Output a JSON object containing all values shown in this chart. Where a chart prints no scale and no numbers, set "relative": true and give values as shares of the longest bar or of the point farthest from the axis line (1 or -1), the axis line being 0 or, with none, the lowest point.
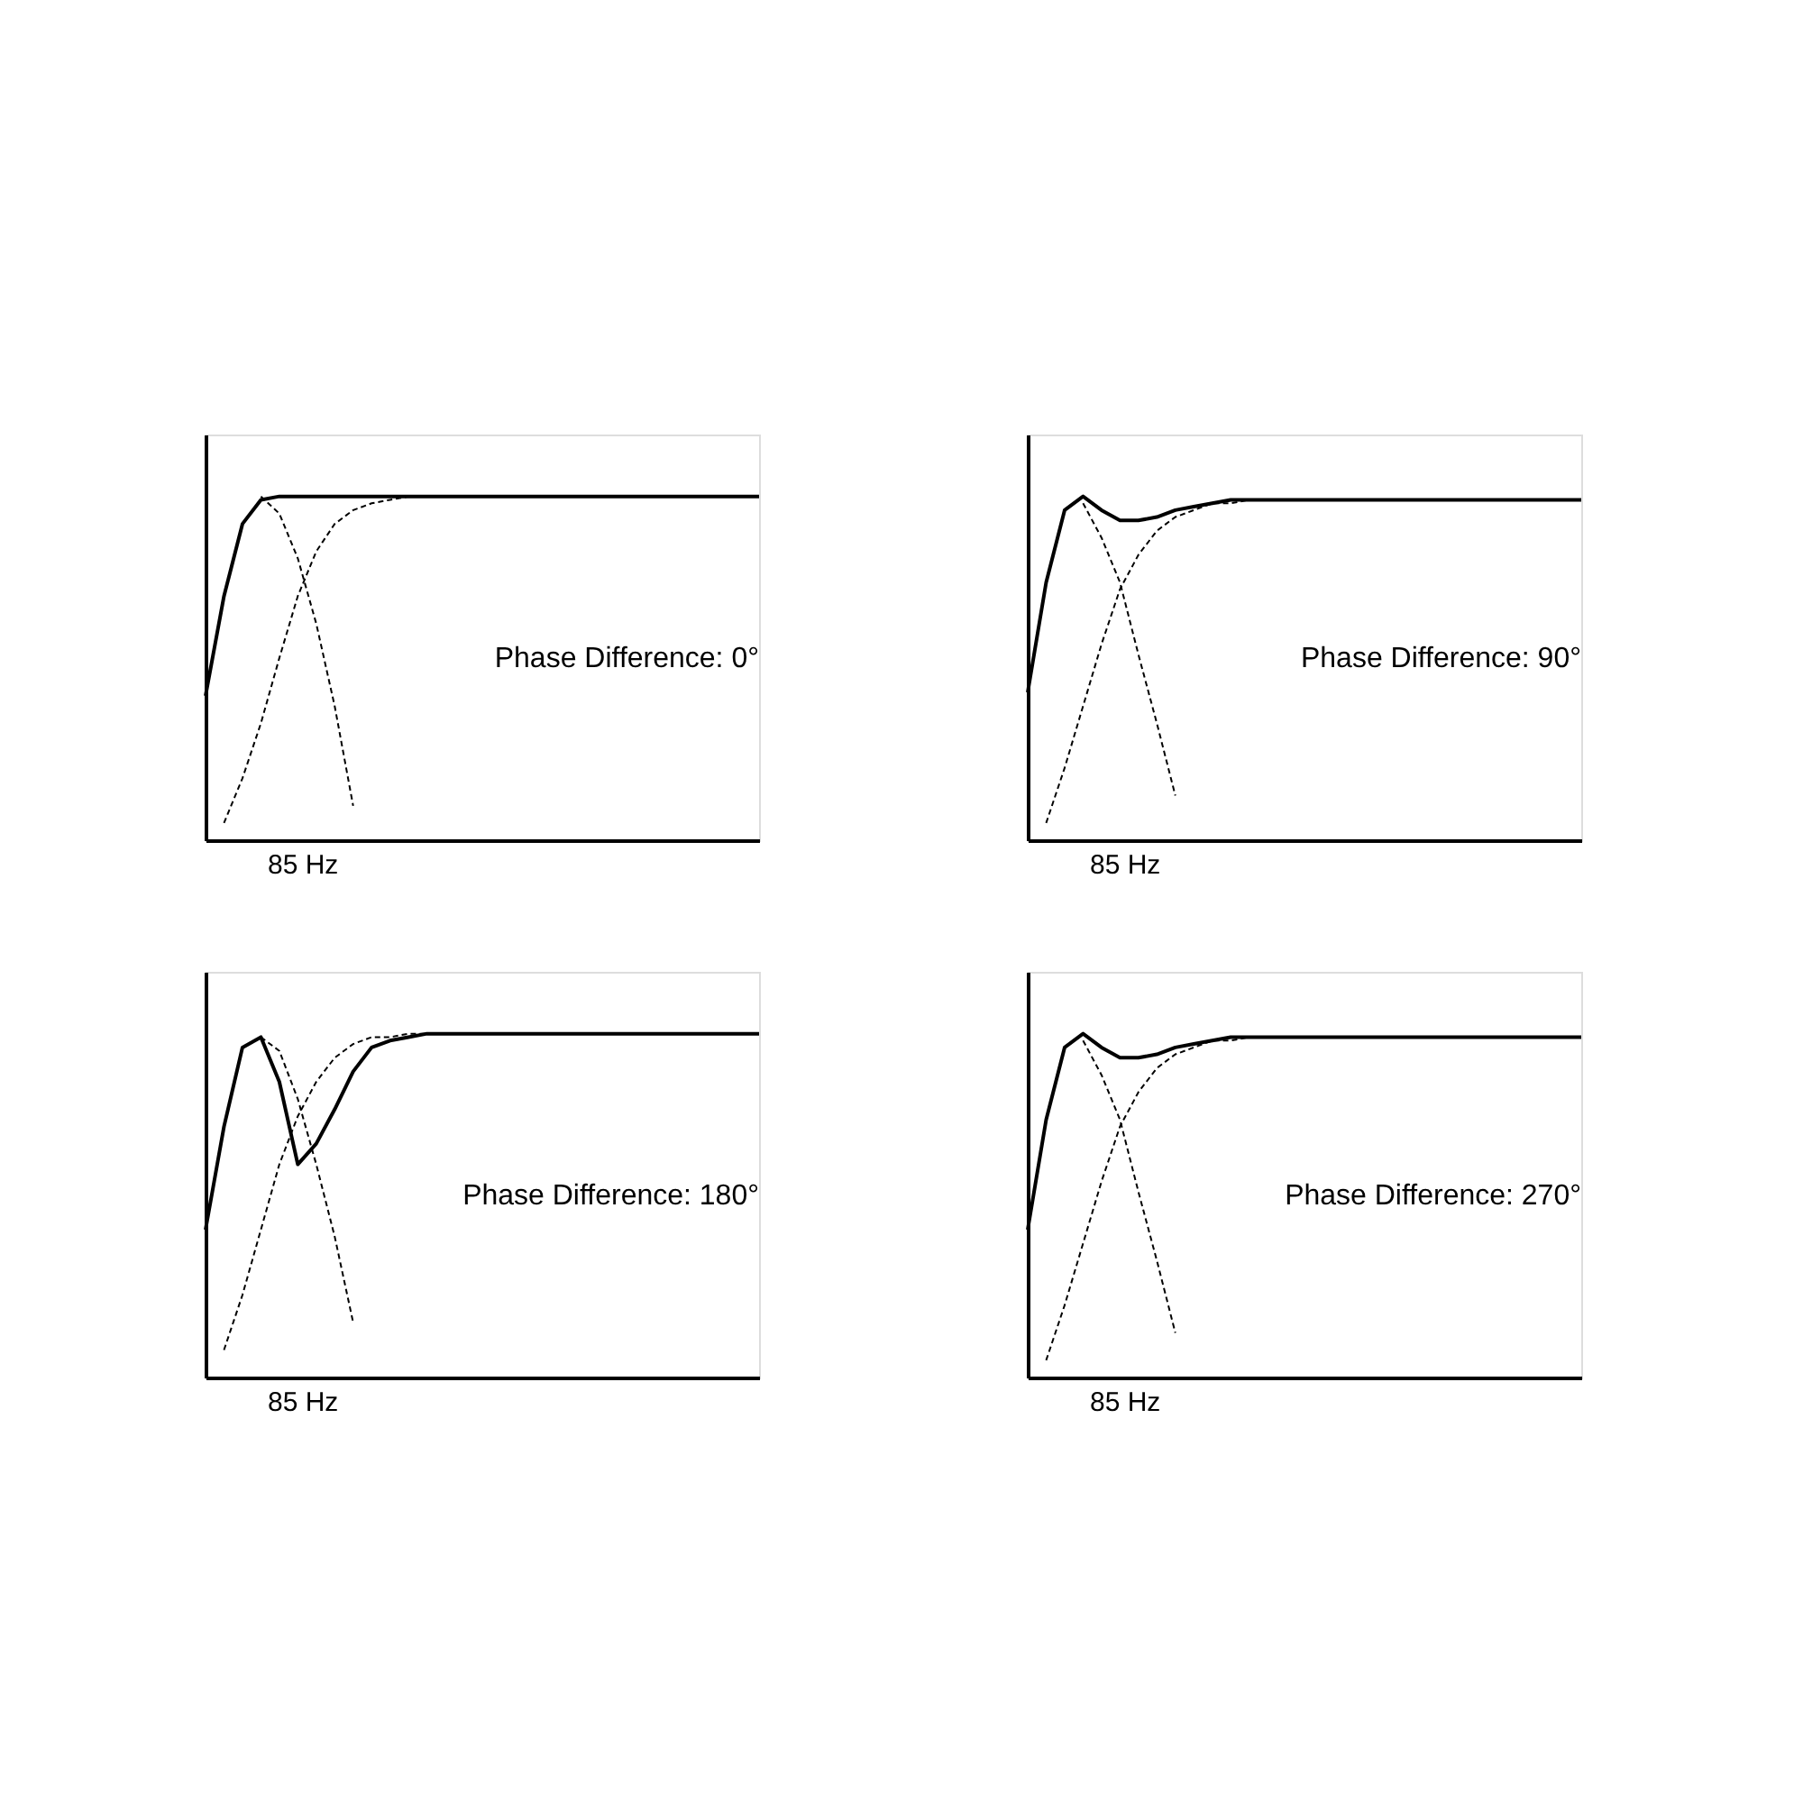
{
  "chart_data": [
    {
      "type": "line",
      "relative": true,
      "xlabel": "85 Hz",
      "annotations": [
        "Phase Difference: 0°"
      ],
      "categories": [
        null,
        null,
        null,
        null,
        null,
        null,
        null,
        null,
        null,
        null,
        null,
        null,
        null,
        null,
        null,
        null,
        null,
        null,
        null,
        null,
        null,
        null,
        null,
        null,
        null,
        null,
        null,
        null,
        null,
        null,
        null
      ],
      "series": [
        {
          "color": "#000000",
          "line_style": "solid",
          "values": [
            0.42,
            0.71,
            0.92,
            0.99,
            1,
            1,
            1,
            1,
            1,
            1,
            1,
            1,
            1,
            1,
            1,
            1,
            1,
            1,
            1,
            1,
            1,
            1,
            1,
            1,
            1,
            1,
            1,
            1,
            1,
            1,
            1
          ]
        },
        {
          "color": "#000000",
          "line_style": "dashed",
          "values": [
            null,
            null,
            null,
            1,
            0.95,
            0.82,
            0.63,
            0.39,
            0.1,
            null,
            null,
            null,
            null,
            null,
            null,
            null,
            null,
            null,
            null,
            null,
            null,
            null,
            null,
            null,
            null,
            null,
            null,
            null,
            null,
            null,
            null
          ]
        },
        {
          "color": "#000000",
          "line_style": "dashed",
          "values": [
            null,
            0.05,
            0.18,
            0.34,
            0.53,
            0.71,
            0.84,
            0.92,
            0.96,
            0.98,
            0.99,
            1,
            1,
            1,
            1,
            1,
            1,
            1,
            1,
            1,
            1,
            1,
            1,
            1,
            1,
            1,
            1,
            1,
            1,
            1,
            1
          ]
        }
      ]
    },
    {
      "type": "line",
      "relative": true,
      "xlabel": "85 Hz",
      "annotations": [
        "Phase Difference: 90°"
      ],
      "categories": [
        null,
        null,
        null,
        null,
        null,
        null,
        null,
        null,
        null,
        null,
        null,
        null,
        null,
        null,
        null,
        null,
        null,
        null,
        null,
        null,
        null,
        null,
        null,
        null,
        null,
        null,
        null,
        null,
        null,
        null,
        null
      ],
      "series": [
        {
          "color": "#000000",
          "line_style": "solid",
          "values": [
            0.43,
            0.75,
            0.96,
            1,
            0.96,
            0.93,
            0.93,
            0.94,
            0.96,
            0.97,
            0.98,
            0.99,
            0.99,
            0.99,
            0.99,
            0.99,
            0.99,
            0.99,
            0.99,
            0.99,
            0.99,
            0.99,
            0.99,
            0.99,
            0.99,
            0.99,
            0.99,
            0.99,
            0.99,
            0.99,
            0.99
          ]
        },
        {
          "color": "#000000",
          "line_style": "dashed",
          "values": [
            null,
            null,
            null,
            0.98,
            0.88,
            0.75,
            0.54,
            0.34,
            0.13,
            null,
            null,
            null,
            null,
            null,
            null,
            null,
            null,
            null,
            null,
            null,
            null,
            null,
            null,
            null,
            null,
            null,
            null,
            null,
            null,
            null,
            null
          ]
        },
        {
          "color": "#000000",
          "line_style": "dashed",
          "values": [
            null,
            0.05,
            0.21,
            0.39,
            0.57,
            0.73,
            0.83,
            0.9,
            0.94,
            0.96,
            0.98,
            0.98,
            0.99,
            0.99,
            0.99,
            0.99,
            0.99,
            0.99,
            0.99,
            0.99,
            0.99,
            0.99,
            0.99,
            0.99,
            0.99,
            0.99,
            0.99,
            0.99,
            0.99,
            0.99,
            0.99
          ]
        }
      ]
    },
    {
      "type": "line",
      "relative": true,
      "xlabel": "85 Hz",
      "annotations": [
        "Phase Difference: 180°"
      ],
      "categories": [
        null,
        null,
        null,
        null,
        null,
        null,
        null,
        null,
        null,
        null,
        null,
        null,
        null,
        null,
        null,
        null,
        null,
        null,
        null,
        null,
        null,
        null,
        null,
        null,
        null,
        null,
        null,
        null,
        null,
        null,
        null
      ],
      "series": [
        {
          "color": "#000000",
          "line_style": "solid",
          "values": [
            0.43,
            0.73,
            0.96,
            0.99,
            0.86,
            0.62,
            0.68,
            0.78,
            0.89,
            0.96,
            0.98,
            0.99,
            1,
            1,
            1,
            1,
            1,
            1,
            1,
            1,
            1,
            1,
            1,
            1,
            1,
            1,
            1,
            1,
            1,
            1,
            1
          ]
        },
        {
          "color": "#000000",
          "line_style": "dashed",
          "values": [
            null,
            null,
            null,
            0.99,
            0.95,
            0.81,
            0.62,
            0.41,
            0.16,
            null,
            null,
            null,
            null,
            null,
            null,
            null,
            null,
            null,
            null,
            null,
            null,
            null,
            null,
            null,
            null,
            null,
            null,
            null,
            null,
            null,
            null
          ]
        },
        {
          "color": "#000000",
          "line_style": "dashed",
          "values": [
            null,
            0.08,
            0.24,
            0.43,
            0.62,
            0.76,
            0.86,
            0.93,
            0.97,
            0.99,
            0.99,
            1,
            1,
            1,
            1,
            1,
            1,
            1,
            1,
            1,
            1,
            1,
            1,
            1,
            1,
            1,
            1,
            1,
            1,
            1,
            1
          ]
        }
      ]
    },
    {
      "type": "line",
      "relative": true,
      "xlabel": "85 Hz",
      "annotations": [
        "Phase Difference: 270°"
      ],
      "categories": [
        null,
        null,
        null,
        null,
        null,
        null,
        null,
        null,
        null,
        null,
        null,
        null,
        null,
        null,
        null,
        null,
        null,
        null,
        null,
        null,
        null,
        null,
        null,
        null,
        null,
        null,
        null,
        null,
        null,
        null,
        null
      ],
      "series": [
        {
          "color": "#000000",
          "line_style": "solid",
          "values": [
            0.43,
            0.75,
            0.96,
            1,
            0.96,
            0.93,
            0.93,
            0.94,
            0.96,
            0.97,
            0.98,
            0.99,
            0.99,
            0.99,
            0.99,
            0.99,
            0.99,
            0.99,
            0.99,
            0.99,
            0.99,
            0.99,
            0.99,
            0.99,
            0.99,
            0.99,
            0.99,
            0.99,
            0.99,
            0.99,
            0.99
          ]
        },
        {
          "color": "#000000",
          "line_style": "dashed",
          "values": [
            null,
            null,
            null,
            0.98,
            0.88,
            0.75,
            0.54,
            0.34,
            0.13,
            null,
            null,
            null,
            null,
            null,
            null,
            null,
            null,
            null,
            null,
            null,
            null,
            null,
            null,
            null,
            null,
            null,
            null,
            null,
            null,
            null,
            null
          ]
        },
        {
          "color": "#000000",
          "line_style": "dashed",
          "values": [
            null,
            0.05,
            0.21,
            0.39,
            0.57,
            0.73,
            0.83,
            0.9,
            0.94,
            0.96,
            0.98,
            0.98,
            0.99,
            0.99,
            0.99,
            0.99,
            0.99,
            0.99,
            0.99,
            0.99,
            0.99,
            0.99,
            0.99,
            0.99,
            0.99,
            0.99,
            0.99,
            0.99,
            0.99,
            0.99,
            0.99
          ]
        }
      ]
    }
  ]
}
